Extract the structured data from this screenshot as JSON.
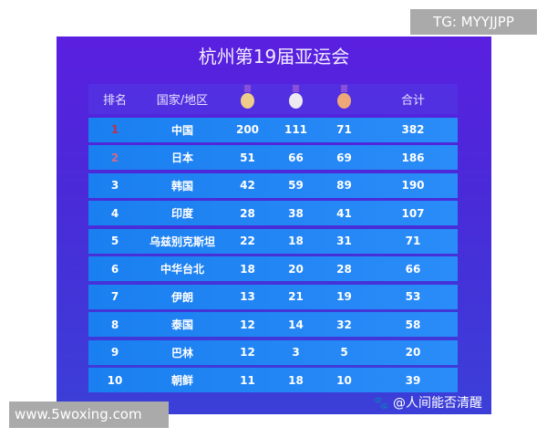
{
  "title": "杭州第19届亚运会",
  "headers": {
    "rank": "排名",
    "country": "国家/地区",
    "total": "合计"
  },
  "medal_icons": [
    "gold-medal-icon",
    "silver-medal-icon",
    "bronze-medal-icon"
  ],
  "rows": [
    {
      "rank": "1",
      "country": "中国",
      "gold": "200",
      "silver": "111",
      "bronze": "71",
      "total": "382"
    },
    {
      "rank": "2",
      "country": "日本",
      "gold": "51",
      "silver": "66",
      "bronze": "69",
      "total": "186"
    },
    {
      "rank": "3",
      "country": "韩国",
      "gold": "42",
      "silver": "59",
      "bronze": "89",
      "total": "190"
    },
    {
      "rank": "4",
      "country": "印度",
      "gold": "28",
      "silver": "38",
      "bronze": "41",
      "total": "107"
    },
    {
      "rank": "5",
      "country": "乌兹别克斯坦",
      "gold": "22",
      "silver": "18",
      "bronze": "31",
      "total": "71"
    },
    {
      "rank": "6",
      "country": "中华台北",
      "gold": "18",
      "silver": "20",
      "bronze": "28",
      "total": "66"
    },
    {
      "rank": "7",
      "country": "伊朗",
      "gold": "13",
      "silver": "21",
      "bronze": "19",
      "total": "53"
    },
    {
      "rank": "8",
      "country": "泰国",
      "gold": "12",
      "silver": "14",
      "bronze": "32",
      "total": "58"
    },
    {
      "rank": "9",
      "country": "巴林",
      "gold": "12",
      "silver": "3",
      "bronze": "5",
      "total": "20"
    },
    {
      "rank": "10",
      "country": "朝鲜",
      "gold": "11",
      "silver": "18",
      "bronze": "10",
      "total": "39"
    }
  ],
  "weibo_watermark": "@人间能否清醒",
  "tg_watermark": "TG: MYYJJPP",
  "site_watermark": "www.5woxing.com"
}
